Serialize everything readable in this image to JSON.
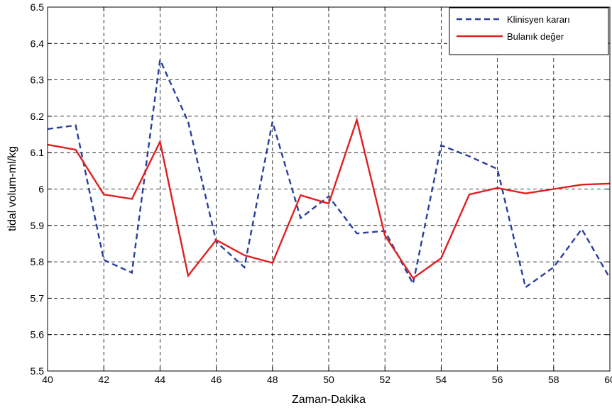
{
  "chart_data": {
    "type": "line",
    "xlabel": "Zaman-Dakika",
    "ylabel": "tidal volum-ml/kg",
    "xlim": [
      40,
      60
    ],
    "ylim": [
      5.5,
      6.5
    ],
    "x_ticks": [
      "40",
      "42",
      "44",
      "46",
      "48",
      "50",
      "52",
      "54",
      "56",
      "58",
      "60"
    ],
    "y_ticks": [
      "5.5",
      "5.6",
      "5.7",
      "5.8",
      "5.9",
      "6",
      "6.1",
      "6.2",
      "6.3",
      "6.4",
      "6.5"
    ],
    "x": [
      40,
      41,
      42,
      43,
      44,
      45,
      46,
      47,
      48,
      49,
      50,
      51,
      52,
      53,
      54,
      55,
      56,
      57,
      58,
      59,
      60
    ],
    "grid": true,
    "legend_position": "top-right",
    "series": [
      {
        "name": "Klinisyen kararı",
        "color": "#2b3f9e",
        "dash": "dashed",
        "values": [
          6.165,
          6.175,
          5.805,
          5.77,
          6.355,
          6.185,
          5.855,
          5.785,
          6.185,
          5.92,
          5.98,
          5.878,
          5.885,
          5.74,
          6.12,
          6.09,
          6.055,
          5.73,
          5.785,
          5.89,
          5.755
        ]
      },
      {
        "name": "Bulanık değer",
        "color": "#e02020",
        "dash": "solid",
        "values": [
          6.122,
          6.108,
          5.985,
          5.973,
          6.13,
          5.762,
          5.86,
          5.818,
          5.797,
          5.983,
          5.96,
          6.19,
          5.872,
          5.755,
          5.81,
          5.985,
          6.003,
          5.988,
          6.0,
          6.012,
          6.015
        ]
      }
    ]
  }
}
